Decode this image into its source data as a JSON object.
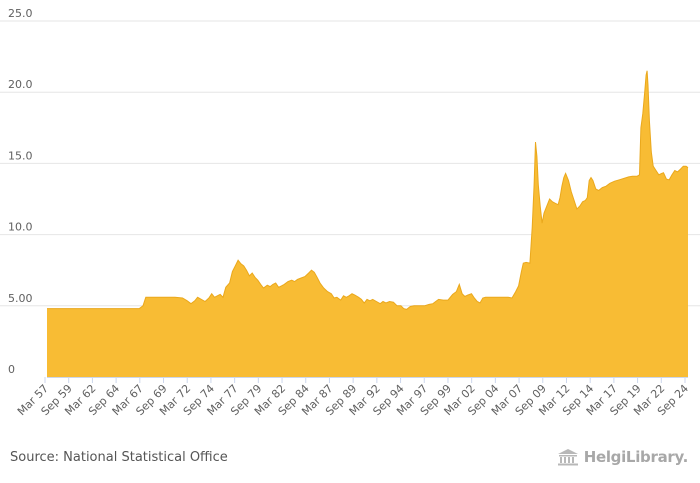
{
  "chart_data": {
    "type": "area",
    "title": "",
    "xlabel": "",
    "ylabel": "",
    "ylim": [
      0,
      25
    ],
    "y_ticks": [
      "0",
      "5.00",
      "10.0",
      "15.0",
      "20.0",
      "25.0"
    ],
    "x_tick_labels": [
      "Mar 57",
      "Sep 59",
      "Mar 62",
      "Sep 64",
      "Mar 67",
      "Sep 69",
      "Mar 72",
      "Sep 74",
      "Mar 77",
      "Sep 79",
      "Mar 82",
      "Sep 84",
      "Mar 87",
      "Sep 89",
      "Mar 92",
      "Sep 94",
      "Mar 97",
      "Sep 99",
      "Mar 02",
      "Sep 04",
      "Mar 07",
      "Sep 09",
      "Mar 12",
      "Sep 14",
      "Mar 17",
      "Sep 19",
      "Mar 22",
      "Sep 24"
    ],
    "x_start": 1957.2,
    "x_end": 2025.3,
    "fill_color": "#f8bc34",
    "stroke_color": "#eaa81c",
    "series": [
      {
        "name": "value",
        "points": [
          [
            1957.2,
            4.8
          ],
          [
            1961.0,
            4.8
          ],
          [
            1965.0,
            4.8
          ],
          [
            1967.0,
            4.8
          ],
          [
            1967.4,
            5.0
          ],
          [
            1967.7,
            5.6
          ],
          [
            1969.5,
            5.6
          ],
          [
            1970.8,
            5.6
          ],
          [
            1971.6,
            5.55
          ],
          [
            1972.1,
            5.35
          ],
          [
            1972.5,
            5.15
          ],
          [
            1972.9,
            5.35
          ],
          [
            1973.2,
            5.6
          ],
          [
            1973.6,
            5.45
          ],
          [
            1974.0,
            5.3
          ],
          [
            1974.4,
            5.55
          ],
          [
            1974.7,
            5.85
          ],
          [
            1975.0,
            5.6
          ],
          [
            1975.3,
            5.7
          ],
          [
            1975.6,
            5.8
          ],
          [
            1975.9,
            5.6
          ],
          [
            1976.2,
            6.3
          ],
          [
            1976.6,
            6.6
          ],
          [
            1976.9,
            7.4
          ],
          [
            1977.2,
            7.8
          ],
          [
            1977.5,
            8.2
          ],
          [
            1977.8,
            7.95
          ],
          [
            1978.1,
            7.8
          ],
          [
            1978.4,
            7.5
          ],
          [
            1978.7,
            7.1
          ],
          [
            1979.0,
            7.3
          ],
          [
            1979.3,
            7.0
          ],
          [
            1979.6,
            6.8
          ],
          [
            1979.9,
            6.5
          ],
          [
            1980.2,
            6.25
          ],
          [
            1980.6,
            6.45
          ],
          [
            1980.9,
            6.35
          ],
          [
            1981.2,
            6.5
          ],
          [
            1981.5,
            6.6
          ],
          [
            1981.8,
            6.3
          ],
          [
            1982.1,
            6.4
          ],
          [
            1982.4,
            6.5
          ],
          [
            1982.8,
            6.7
          ],
          [
            1983.2,
            6.8
          ],
          [
            1983.5,
            6.7
          ],
          [
            1983.8,
            6.85
          ],
          [
            1984.2,
            6.95
          ],
          [
            1984.6,
            7.05
          ],
          [
            1985.0,
            7.3
          ],
          [
            1985.3,
            7.5
          ],
          [
            1985.6,
            7.35
          ],
          [
            1985.9,
            7.0
          ],
          [
            1986.2,
            6.6
          ],
          [
            1986.6,
            6.25
          ],
          [
            1987.0,
            6.0
          ],
          [
            1987.4,
            5.85
          ],
          [
            1987.7,
            5.55
          ],
          [
            1988.0,
            5.6
          ],
          [
            1988.4,
            5.4
          ],
          [
            1988.7,
            5.7
          ],
          [
            1989.0,
            5.6
          ],
          [
            1989.3,
            5.7
          ],
          [
            1989.6,
            5.85
          ],
          [
            1989.9,
            5.75
          ],
          [
            1990.3,
            5.6
          ],
          [
            1990.6,
            5.45
          ],
          [
            1990.9,
            5.2
          ],
          [
            1991.2,
            5.45
          ],
          [
            1991.5,
            5.35
          ],
          [
            1991.8,
            5.45
          ],
          [
            1992.2,
            5.3
          ],
          [
            1992.6,
            5.15
          ],
          [
            1992.9,
            5.3
          ],
          [
            1993.2,
            5.2
          ],
          [
            1993.6,
            5.3
          ],
          [
            1994.0,
            5.25
          ],
          [
            1994.4,
            5.0
          ],
          [
            1994.8,
            5.0
          ],
          [
            1995.1,
            4.8
          ],
          [
            1995.4,
            4.75
          ],
          [
            1995.8,
            4.95
          ],
          [
            1996.2,
            5.0
          ],
          [
            1996.8,
            5.0
          ],
          [
            1997.3,
            5.0
          ],
          [
            1997.8,
            5.1
          ],
          [
            1998.2,
            5.15
          ],
          [
            1998.5,
            5.3
          ],
          [
            1998.8,
            5.45
          ],
          [
            1999.3,
            5.4
          ],
          [
            1999.8,
            5.4
          ],
          [
            2000.3,
            5.8
          ],
          [
            2000.7,
            6.0
          ],
          [
            2001.0,
            6.5
          ],
          [
            2001.3,
            5.85
          ],
          [
            2001.6,
            5.65
          ],
          [
            2001.9,
            5.75
          ],
          [
            2002.3,
            5.85
          ],
          [
            2002.6,
            5.55
          ],
          [
            2002.9,
            5.3
          ],
          [
            2003.2,
            5.2
          ],
          [
            2003.5,
            5.55
          ],
          [
            2003.8,
            5.6
          ],
          [
            2004.5,
            5.6
          ],
          [
            2005.5,
            5.6
          ],
          [
            2006.2,
            5.6
          ],
          [
            2006.6,
            5.55
          ],
          [
            2007.0,
            6.0
          ],
          [
            2007.3,
            6.4
          ],
          [
            2007.6,
            7.4
          ],
          [
            2007.8,
            8.0
          ],
          [
            2008.1,
            8.05
          ],
          [
            2008.5,
            8.0
          ],
          [
            2008.75,
            10.5
          ],
          [
            2008.95,
            13.5
          ],
          [
            2009.1,
            16.5
          ],
          [
            2009.25,
            15.5
          ],
          [
            2009.4,
            13.5
          ],
          [
            2009.6,
            12.0
          ],
          [
            2009.8,
            10.8
          ],
          [
            2010.0,
            11.5
          ],
          [
            2010.3,
            12.0
          ],
          [
            2010.6,
            12.5
          ],
          [
            2010.9,
            12.3
          ],
          [
            2011.2,
            12.2
          ],
          [
            2011.5,
            12.1
          ],
          [
            2011.7,
            12.6
          ],
          [
            2011.9,
            13.4
          ],
          [
            2012.1,
            14.0
          ],
          [
            2012.3,
            14.3
          ],
          [
            2012.6,
            13.8
          ],
          [
            2012.9,
            13.0
          ],
          [
            2013.2,
            12.4
          ],
          [
            2013.5,
            11.8
          ],
          [
            2013.8,
            12.0
          ],
          [
            2014.1,
            12.3
          ],
          [
            2014.4,
            12.4
          ],
          [
            2014.6,
            12.6
          ],
          [
            2014.8,
            13.8
          ],
          [
            2015.0,
            14.0
          ],
          [
            2015.2,
            13.8
          ],
          [
            2015.5,
            13.2
          ],
          [
            2015.8,
            13.1
          ],
          [
            2016.2,
            13.3
          ],
          [
            2016.6,
            13.4
          ],
          [
            2017.0,
            13.6
          ],
          [
            2017.5,
            13.75
          ],
          [
            2018.0,
            13.85
          ],
          [
            2018.5,
            13.95
          ],
          [
            2019.0,
            14.05
          ],
          [
            2019.4,
            14.1
          ],
          [
            2019.9,
            14.1
          ],
          [
            2020.15,
            14.2
          ],
          [
            2020.3,
            17.5
          ],
          [
            2020.5,
            18.5
          ],
          [
            2020.7,
            20.0
          ],
          [
            2020.85,
            21.2
          ],
          [
            2020.95,
            21.5
          ],
          [
            2021.05,
            20.5
          ],
          [
            2021.2,
            18.0
          ],
          [
            2021.4,
            15.8
          ],
          [
            2021.6,
            14.8
          ],
          [
            2021.9,
            14.5
          ],
          [
            2022.2,
            14.2
          ],
          [
            2022.5,
            14.3
          ],
          [
            2022.7,
            14.35
          ],
          [
            2023.0,
            13.9
          ],
          [
            2023.3,
            13.85
          ],
          [
            2023.6,
            14.2
          ],
          [
            2023.9,
            14.5
          ],
          [
            2024.2,
            14.4
          ],
          [
            2024.5,
            14.6
          ],
          [
            2024.8,
            14.8
          ],
          [
            2025.1,
            14.8
          ],
          [
            2025.3,
            14.7
          ]
        ]
      }
    ]
  },
  "footer": {
    "source_text": "Source: National Statistical Office",
    "brand_text": "HelgiLibrary."
  }
}
